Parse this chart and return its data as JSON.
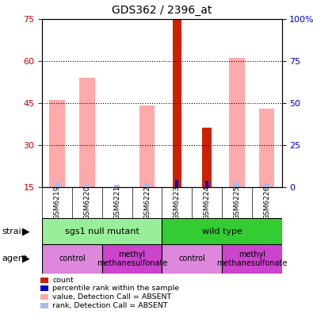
{
  "title": "GDS362 / 2396_at",
  "samples": [
    "GSM6219",
    "GSM6220",
    "GSM6221",
    "GSM6222",
    "GSM6223",
    "GSM6224",
    "GSM6225",
    "GSM6226"
  ],
  "left_yaxis": {
    "min": 15,
    "max": 75,
    "ticks": [
      15,
      30,
      45,
      60,
      75
    ],
    "color": "#cc0000"
  },
  "right_yaxis": {
    "min": 0,
    "max": 100,
    "ticks": [
      0,
      25,
      50,
      75,
      100
    ],
    "color": "#0000cc"
  },
  "pink_bars": [
    46,
    54,
    0,
    44,
    0,
    0,
    61,
    43
  ],
  "lightblue_bars": [
    16.5,
    16.2,
    15.8,
    16.2,
    0,
    0,
    16.5,
    16.2
  ],
  "red_bars": [
    0,
    0,
    0,
    0,
    75,
    36,
    0,
    0
  ],
  "blue_bars": [
    0,
    0,
    0,
    0,
    17.5,
    17.2,
    0,
    0
  ],
  "strain_groups": [
    {
      "label": "sgs1 null mutant",
      "start": 0,
      "end": 4,
      "color": "#99ee99"
    },
    {
      "label": "wild type",
      "start": 4,
      "end": 8,
      "color": "#33cc33"
    }
  ],
  "agent_groups": [
    {
      "label": "control",
      "start": 0,
      "end": 2,
      "color": "#dd88dd"
    },
    {
      "label": "methyl\nmethanesulfonate",
      "start": 2,
      "end": 4,
      "color": "#cc44cc"
    },
    {
      "label": "control",
      "start": 4,
      "end": 6,
      "color": "#dd88dd"
    },
    {
      "label": "methyl\nmethanesulfonate",
      "start": 6,
      "end": 8,
      "color": "#cc44cc"
    }
  ],
  "legend_items": [
    {
      "color": "#cc2200",
      "label": "count"
    },
    {
      "color": "#0000cc",
      "label": "percentile rank within the sample"
    },
    {
      "color": "#ffaaaa",
      "label": "value, Detection Call = ABSENT"
    },
    {
      "color": "#aabbee",
      "label": "rank, Detection Call = ABSENT"
    }
  ],
  "bg_color": "#ffffff",
  "plot_bg": "#ffffff"
}
